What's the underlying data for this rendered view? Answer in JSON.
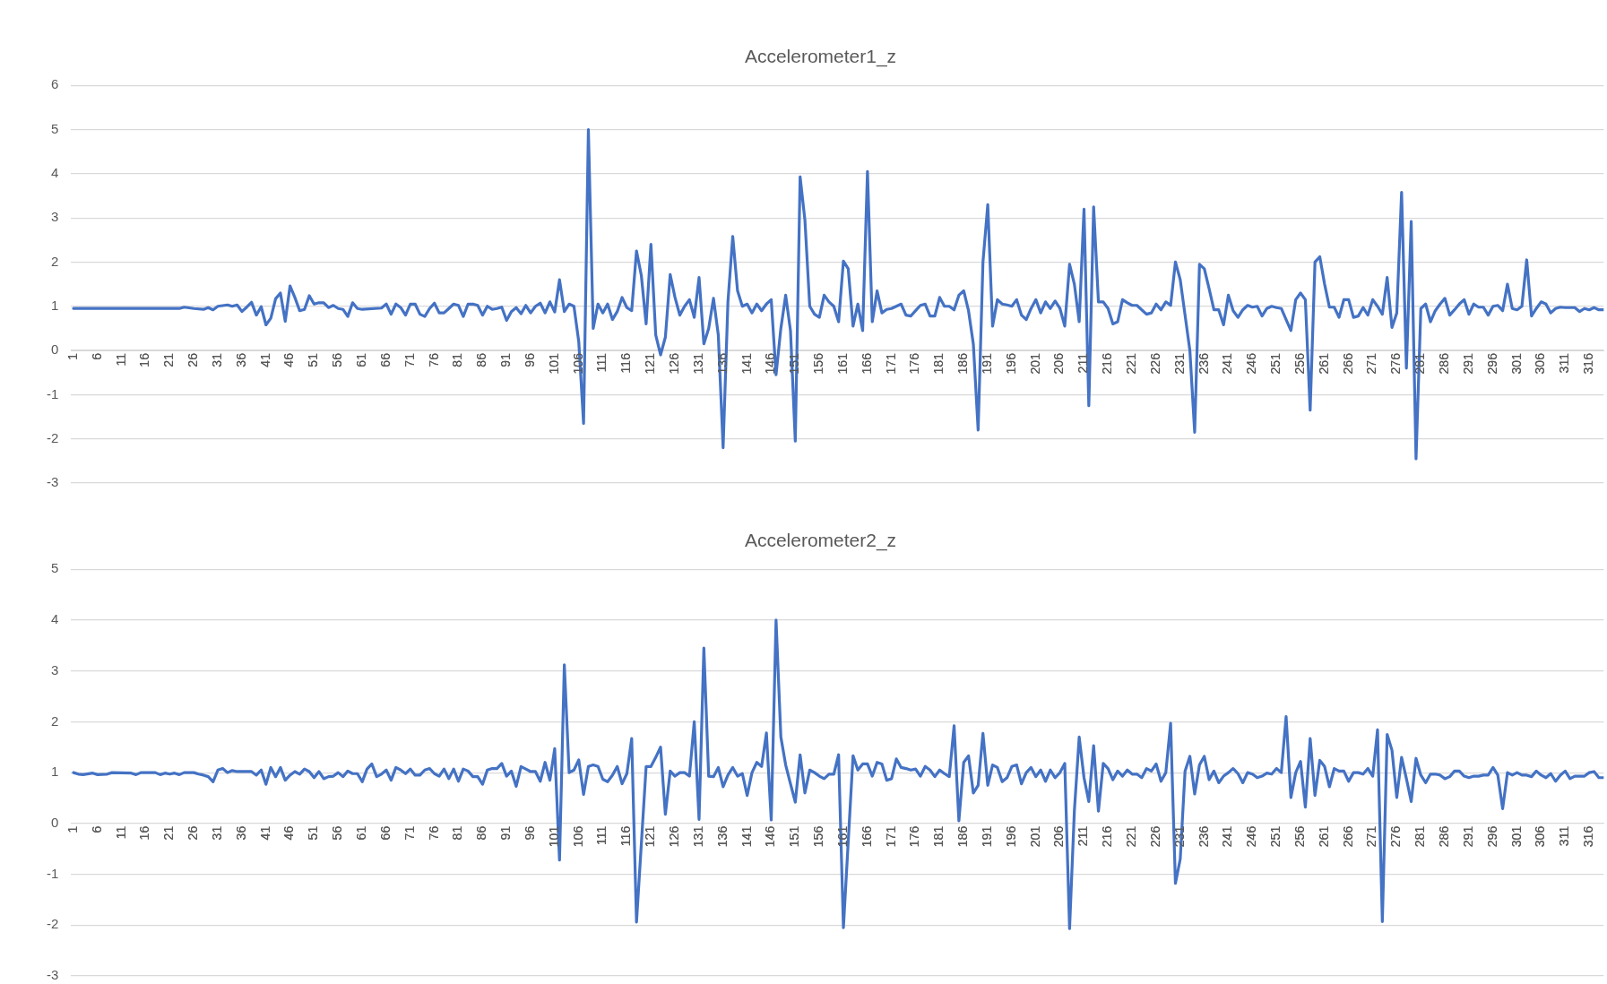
{
  "chart_data": [
    {
      "type": "line",
      "title": "Accelerometer1_z",
      "color": "#4472c4",
      "marker": "none",
      "grid": "y",
      "xlim": [
        0.5,
        319
      ],
      "xticks": [
        1,
        6,
        11,
        16,
        21,
        26,
        31,
        36,
        41,
        46,
        51,
        56,
        61,
        66,
        71,
        76,
        81,
        86,
        91,
        96,
        101,
        106,
        111,
        116,
        121,
        126,
        131,
        136,
        141,
        146,
        151,
        156,
        161,
        166,
        171,
        176,
        181,
        186,
        191,
        196,
        201,
        206,
        211,
        216,
        221,
        226,
        231,
        236,
        241,
        246,
        251,
        256,
        261,
        266,
        271,
        276,
        281,
        286,
        291,
        296,
        301,
        306,
        311,
        316
      ],
      "ylim": [
        -3,
        6
      ],
      "yticks": [
        -3,
        -2,
        -1,
        0,
        1,
        2,
        3,
        4,
        5,
        6
      ],
      "x": [
        1,
        23,
        24,
        26,
        28,
        29,
        30,
        31,
        33,
        34,
        35,
        36,
        37,
        38,
        39,
        40,
        41,
        42,
        43,
        44,
        45,
        46,
        47,
        48,
        49,
        50,
        51,
        52,
        53,
        54,
        55,
        56,
        57,
        58,
        59,
        60,
        61,
        65,
        66,
        67,
        68,
        69,
        70,
        71,
        72,
        73,
        74,
        75,
        76,
        77,
        78,
        79,
        80,
        81,
        82,
        83,
        84,
        85,
        86,
        87,
        88,
        89,
        90,
        91,
        92,
        93,
        94,
        95,
        96,
        97,
        98,
        99,
        100,
        101,
        102,
        103,
        104,
        105,
        106,
        107,
        108,
        109,
        110,
        111,
        112,
        113,
        114,
        115,
        116,
        117,
        118,
        119,
        120,
        121,
        122,
        123,
        124,
        125,
        126,
        127,
        128,
        129,
        130,
        131,
        132,
        133,
        134,
        135,
        136,
        137,
        138,
        139,
        140,
        141,
        142,
        143,
        144,
        145,
        146,
        147,
        148,
        149,
        150,
        151,
        152,
        153,
        154,
        155,
        156,
        157,
        158,
        159,
        160,
        161,
        162,
        163,
        164,
        165,
        166,
        167,
        168,
        169,
        170,
        171,
        172,
        173,
        174,
        175,
        176,
        177,
        178,
        179,
        180,
        181,
        182,
        183,
        184,
        185,
        186,
        187,
        188,
        189,
        190,
        191,
        192,
        193,
        194,
        195,
        196,
        197,
        198,
        199,
        200,
        201,
        202,
        203,
        204,
        205,
        206,
        207,
        208,
        209,
        210,
        211,
        212,
        213,
        214,
        215,
        216,
        217,
        218,
        219,
        220,
        221,
        222,
        223,
        224,
        225,
        226,
        227,
        228,
        229,
        230,
        231,
        232,
        233,
        234,
        235,
        236,
        237,
        238,
        239,
        240,
        241,
        242,
        243,
        244,
        245,
        246,
        247,
        248,
        249,
        250,
        251,
        252,
        253,
        254,
        255,
        256,
        257,
        258,
        259,
        260,
        261,
        262,
        263,
        264,
        265,
        266,
        267,
        268,
        269,
        270,
        271,
        272,
        273,
        274,
        275,
        276,
        277,
        278,
        279,
        280,
        281,
        282,
        283,
        284,
        285,
        286,
        287,
        288,
        289,
        290,
        291,
        292,
        293,
        294,
        295,
        296,
        297,
        298,
        299,
        300,
        301,
        302,
        303,
        304,
        305,
        306,
        307,
        308,
        309,
        310,
        311,
        312,
        313,
        314,
        315,
        316,
        317,
        318,
        319
      ],
      "values": [
        0.95,
        0.95,
        0.98,
        0.95,
        0.93,
        0.97,
        0.92,
        1.0,
        1.03,
        1.0,
        1.03,
        0.88,
        0.98,
        1.09,
        0.8,
        0.99,
        0.58,
        0.73,
        1.17,
        1.3,
        0.66,
        1.46,
        1.2,
        0.9,
        0.93,
        1.24,
        1.05,
        1.08,
        1.08,
        0.97,
        1.02,
        0.95,
        0.93,
        0.77,
        1.08,
        0.95,
        0.93,
        0.96,
        1.05,
        0.82,
        1.05,
        0.97,
        0.8,
        1.05,
        1.05,
        0.82,
        0.77,
        0.95,
        1.07,
        0.85,
        0.85,
        0.95,
        1.05,
        1.02,
        0.77,
        1.05,
        1.05,
        1.02,
        0.8,
        1.0,
        0.93,
        0.95,
        0.98,
        0.68,
        0.88,
        0.97,
        0.83,
        1.02,
        0.85,
        1.0,
        1.07,
        0.85,
        1.1,
        0.87,
        1.6,
        0.88,
        1.05,
        1.0,
        0.2,
        -1.65,
        5.0,
        0.5,
        1.05,
        0.85,
        1.05,
        0.7,
        0.88,
        1.2,
        0.97,
        0.9,
        2.25,
        1.7,
        0.6,
        2.4,
        0.35,
        -0.1,
        0.3,
        1.72,
        1.2,
        0.8,
        1.0,
        1.15,
        0.75,
        1.65,
        0.15,
        0.5,
        1.18,
        0.35,
        -2.2,
        1.1,
        2.58,
        1.35,
        1.0,
        1.05,
        0.85,
        1.05,
        0.9,
        1.05,
        1.15,
        -0.55,
        0.5,
        1.25,
        0.45,
        -2.05,
        3.93,
        2.95,
        1.0,
        0.82,
        0.75,
        1.25,
        1.1,
        1.0,
        0.65,
        2.02,
        1.85,
        0.55,
        1.05,
        0.45,
        4.05,
        0.65,
        1.35,
        0.85,
        0.93,
        0.95,
        1.0,
        1.05,
        0.8,
        0.78,
        0.9,
        1.02,
        1.05,
        0.78,
        0.78,
        1.2,
        1.0,
        1.0,
        0.92,
        1.25,
        1.35,
        0.9,
        0.15,
        -1.8,
        2.0,
        3.3,
        0.55,
        1.15,
        1.05,
        1.03,
        1.0,
        1.15,
        0.8,
        0.7,
        0.95,
        1.15,
        0.85,
        1.1,
        0.95,
        1.12,
        0.95,
        0.55,
        1.95,
        1.5,
        0.65,
        3.2,
        -1.25,
        3.25,
        1.1,
        1.1,
        0.95,
        0.6,
        0.65,
        1.15,
        1.08,
        1.02,
        1.02,
        0.92,
        0.82,
        0.85,
        1.05,
        0.92,
        1.1,
        1.02,
        2.0,
        1.6,
        0.8,
        0.0,
        -1.85,
        1.95,
        1.85,
        1.4,
        0.92,
        0.92,
        0.58,
        1.25,
        0.9,
        0.75,
        0.92,
        1.02,
        0.98,
        1.0,
        0.78,
        0.95,
        1.0,
        0.97,
        0.95,
        0.7,
        0.45,
        1.15,
        1.3,
        1.15,
        -1.35,
        2.0,
        2.12,
        1.5,
        0.98,
        0.98,
        0.75,
        1.15,
        1.15,
        0.75,
        0.78,
        0.97,
        0.8,
        1.15,
        1.0,
        0.82,
        1.65,
        0.52,
        0.85,
        3.58,
        -0.4,
        2.92,
        -2.45,
        0.95,
        1.05,
        0.65,
        0.9,
        1.05,
        1.18,
        0.8,
        0.92,
        1.05,
        1.15,
        0.82,
        1.05,
        0.98,
        0.98,
        0.8,
        1.0,
        1.02,
        0.9,
        1.5,
        0.95,
        0.92,
        1.0,
        2.05,
        0.78,
        0.95,
        1.1,
        1.05,
        0.85,
        0.95,
        0.98,
        0.97,
        0.97,
        0.97,
        0.88,
        0.95,
        0.92,
        0.97,
        0.92,
        0.92
      ]
    },
    {
      "type": "line",
      "title": "Accelerometer2_z",
      "color": "#4472c4",
      "marker": "none",
      "grid": "y",
      "xlim": [
        0.5,
        319
      ],
      "xticks": [
        1,
        6,
        11,
        16,
        21,
        26,
        31,
        36,
        41,
        46,
        51,
        56,
        61,
        66,
        71,
        76,
        81,
        86,
        91,
        96,
        101,
        106,
        111,
        116,
        121,
        126,
        131,
        136,
        141,
        146,
        151,
        156,
        161,
        166,
        171,
        176,
        181,
        186,
        191,
        196,
        201,
        206,
        211,
        216,
        221,
        226,
        231,
        236,
        241,
        246,
        251,
        256,
        261,
        266,
        271,
        276,
        281,
        286,
        291,
        296,
        301,
        306,
        311,
        316
      ],
      "ylim": [
        -3,
        5
      ],
      "yticks": [
        -3,
        -2,
        -1,
        0,
        1,
        2,
        3,
        4,
        5
      ],
      "x": [
        1,
        2,
        3,
        5,
        6,
        8,
        9,
        13,
        14,
        15,
        18,
        19,
        20,
        21,
        22,
        23,
        24,
        26,
        27,
        28,
        29,
        30,
        31,
        32,
        33,
        34,
        35,
        38,
        39,
        40,
        41,
        42,
        43,
        44,
        45,
        46,
        47,
        48,
        49,
        50,
        51,
        52,
        53,
        54,
        55,
        56,
        57,
        58,
        59,
        60,
        61,
        62,
        63,
        64,
        65,
        66,
        67,
        68,
        69,
        70,
        71,
        72,
        73,
        74,
        75,
        76,
        77,
        78,
        79,
        80,
        81,
        82,
        83,
        84,
        85,
        86,
        87,
        88,
        89,
        90,
        91,
        92,
        93,
        94,
        95,
        96,
        97,
        98,
        99,
        100,
        101,
        102,
        103,
        104,
        105,
        106,
        107,
        108,
        109,
        110,
        111,
        112,
        113,
        114,
        115,
        116,
        117,
        118,
        120,
        121,
        122,
        123,
        124,
        125,
        126,
        127,
        128,
        129,
        130,
        131,
        132,
        133,
        134,
        135,
        136,
        137,
        138,
        139,
        140,
        141,
        142,
        143,
        144,
        145,
        146,
        147,
        148,
        149,
        150,
        151,
        152,
        153,
        154,
        155,
        156,
        157,
        158,
        159,
        160,
        161,
        163,
        164,
        165,
        166,
        167,
        168,
        169,
        170,
        171,
        172,
        173,
        174,
        175,
        176,
        177,
        178,
        179,
        180,
        181,
        182,
        183,
        184,
        185,
        186,
        187,
        188,
        189,
        190,
        191,
        192,
        193,
        194,
        195,
        196,
        197,
        198,
        199,
        200,
        201,
        202,
        203,
        204,
        205,
        206,
        207,
        208,
        209,
        210,
        211,
        212,
        213,
        214,
        215,
        216,
        217,
        218,
        219,
        220,
        221,
        222,
        223,
        224,
        225,
        226,
        227,
        228,
        229,
        230,
        231,
        232,
        233,
        234,
        235,
        236,
        237,
        238,
        239,
        240,
        241,
        242,
        243,
        244,
        245,
        246,
        247,
        248,
        249,
        250,
        251,
        252,
        253,
        254,
        255,
        256,
        257,
        258,
        259,
        260,
        261,
        262,
        263,
        264,
        265,
        266,
        267,
        268,
        269,
        270,
        271,
        272,
        273,
        274,
        275,
        276,
        277,
        278,
        279,
        280,
        281,
        282,
        283,
        284,
        285,
        286,
        287,
        288,
        289,
        290,
        291,
        292,
        293,
        294,
        295,
        296,
        297,
        298,
        299,
        300,
        301,
        302,
        303,
        304,
        305,
        306,
        307,
        308,
        309,
        310,
        311,
        312,
        313,
        314,
        315,
        316,
        317,
        318,
        319
      ],
      "values": [
        1.0,
        0.97,
        0.96,
        0.99,
        0.96,
        0.97,
        1.0,
        0.99,
        0.96,
        1.0,
        1.0,
        0.96,
        0.99,
        0.97,
        0.99,
        0.96,
        1.0,
        1.0,
        0.97,
        0.95,
        0.92,
        0.82,
        1.05,
        1.08,
        1.0,
        1.04,
        1.02,
        1.02,
        0.95,
        1.05,
        0.77,
        1.1,
        0.92,
        1.1,
        0.85,
        0.95,
        1.02,
        0.97,
        1.07,
        1.02,
        0.9,
        1.02,
        0.88,
        0.92,
        0.93,
        1.0,
        0.92,
        1.03,
        0.98,
        0.98,
        0.82,
        1.07,
        1.17,
        0.92,
        0.97,
        1.05,
        0.85,
        1.1,
        1.05,
        0.98,
        1.07,
        0.95,
        0.95,
        1.05,
        1.08,
        0.98,
        0.93,
        1.07,
        0.88,
        1.07,
        0.83,
        1.07,
        1.03,
        0.92,
        0.92,
        0.77,
        1.05,
        1.08,
        1.08,
        1.18,
        0.93,
        1.03,
        0.73,
        1.12,
        1.07,
        1.02,
        1.02,
        0.83,
        1.2,
        0.85,
        1.47,
        -0.72,
        3.12,
        1.0,
        1.05,
        1.25,
        0.57,
        1.12,
        1.15,
        1.12,
        0.87,
        0.82,
        0.95,
        1.12,
        0.78,
        0.98,
        1.67,
        -1.94,
        1.12,
        1.12,
        1.3,
        1.5,
        0.18,
        1.03,
        0.93,
        1.0,
        1.0,
        0.93,
        2.0,
        0.08,
        3.45,
        0.93,
        0.92,
        1.1,
        0.72,
        0.95,
        1.1,
        0.93,
        0.98,
        0.55,
        1.0,
        1.2,
        1.12,
        1.78,
        0.07,
        4.0,
        1.7,
        1.15,
        0.78,
        0.42,
        1.35,
        0.6,
        1.05,
        1.0,
        0.93,
        0.88,
        0.97,
        0.97,
        1.35,
        -2.05,
        1.33,
        1.05,
        1.17,
        1.17,
        0.93,
        1.2,
        1.17,
        0.85,
        0.88,
        1.27,
        1.1,
        1.08,
        1.05,
        1.07,
        0.93,
        1.12,
        1.05,
        0.92,
        1.05,
        0.98,
        0.92,
        1.92,
        0.05,
        1.2,
        1.33,
        0.6,
        0.75,
        1.77,
        0.75,
        1.15,
        1.1,
        0.82,
        0.9,
        1.12,
        1.15,
        0.78,
        1.0,
        1.1,
        0.92,
        1.05,
        0.83,
        1.05,
        0.9,
        1.0,
        1.18,
        -2.07,
        0.25,
        1.7,
        0.9,
        0.43,
        1.53,
        0.24,
        1.18,
        1.08,
        0.86,
        1.03,
        0.93,
        1.05,
        0.97,
        0.97,
        0.9,
        1.08,
        1.03,
        1.17,
        0.83,
        1.0,
        1.97,
        -1.18,
        -0.7,
        1.03,
        1.32,
        0.58,
        1.15,
        1.32,
        0.86,
        1.03,
        0.8,
        0.93,
        1.0,
        1.08,
        0.98,
        0.8,
        1.0,
        0.97,
        0.9,
        0.93,
        0.99,
        0.97,
        1.08,
        1.0,
        2.1,
        0.51,
        1.0,
        1.22,
        0.32,
        1.67,
        0.55,
        1.24,
        1.12,
        0.72,
        1.08,
        1.03,
        1.03,
        0.83,
        1.0,
        1.0,
        0.97,
        1.08,
        0.93,
        1.84,
        -1.93,
        1.75,
        1.44,
        0.51,
        1.3,
        0.88,
        0.43,
        1.28,
        0.95,
        0.8,
        0.97,
        0.97,
        0.95,
        0.88,
        0.92,
        1.03,
        1.03,
        0.93,
        0.9,
        0.93,
        0.93,
        0.95,
        0.95,
        1.1,
        0.95,
        0.29,
        1.0,
        0.95,
        1.0,
        0.95,
        0.95,
        0.92,
        1.03,
        0.95,
        0.9,
        0.98,
        0.83,
        0.95,
        1.03,
        0.88,
        0.93,
        0.93,
        0.93,
        1.0,
        1.02,
        0.9,
        0.9
      ]
    }
  ]
}
